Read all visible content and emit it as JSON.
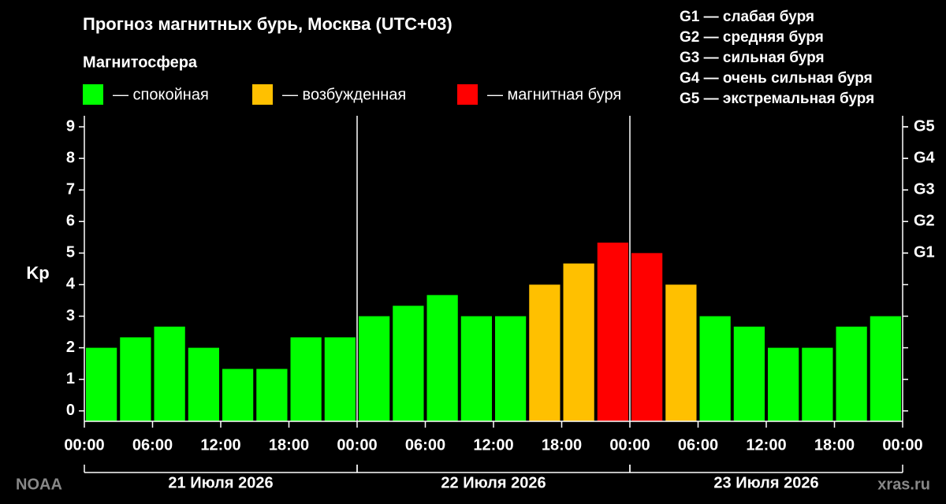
{
  "chart_data": {
    "type": "bar",
    "title": "Прогноз магнитных бурь, Москва (UTC+03)",
    "legend_title": "Магнитосфера",
    "y_label": "Kp",
    "source": "NOAA",
    "credit": "xras.ru",
    "g_legend": [
      "G1 — слабая буря",
      "G2 — средняя буря",
      "G3 — сильная буря",
      "G4 — очень сильная буря",
      "G5 — экстремальная буря"
    ],
    "x": [
      1.5,
      4.5,
      7.5,
      10.5,
      13.5,
      16.5,
      19.5,
      22.5,
      25.5,
      28.5,
      31.5,
      34.5,
      37.5,
      40.5,
      43.5,
      46.5,
      49.5,
      52.5,
      55.5,
      58.5,
      61.5,
      64.5,
      67.5,
      70.5
    ],
    "series": [
      {
        "name": "— спокойная",
        "color": "#00ff00",
        "values": [
          2,
          2.33,
          2.67,
          2,
          1.33,
          1.33,
          2.33,
          2.33,
          3,
          3.33,
          3.67,
          3,
          3,
          null,
          null,
          null,
          null,
          null,
          3,
          2.67,
          2,
          2,
          2.67,
          3
        ]
      },
      {
        "name": "— возбужденная",
        "color": "#ffc000",
        "values": [
          null,
          null,
          null,
          null,
          null,
          null,
          null,
          null,
          null,
          null,
          null,
          null,
          null,
          4,
          4.67,
          null,
          null,
          4,
          null,
          null,
          null,
          null,
          null,
          null
        ]
      },
      {
        "name": "— магнитная буря",
        "color": "#ff0000",
        "values": [
          null,
          null,
          null,
          null,
          null,
          null,
          null,
          null,
          null,
          null,
          null,
          null,
          null,
          null,
          null,
          5.33,
          5,
          null,
          null,
          null,
          null,
          null,
          null,
          null
        ]
      }
    ],
    "xlim": [
      0,
      72
    ],
    "xticks": [
      {
        "value": 0,
        "label": "00:00"
      },
      {
        "value": 6,
        "label": "06:00"
      },
      {
        "value": 12,
        "label": "12:00"
      },
      {
        "value": 18,
        "label": "18:00"
      },
      {
        "value": 24,
        "label": "00:00"
      },
      {
        "value": 30,
        "label": "06:00"
      },
      {
        "value": 36,
        "label": "12:00"
      },
      {
        "value": 42,
        "label": "18:00"
      },
      {
        "value": 48,
        "label": "00:00"
      },
      {
        "value": 54,
        "label": "06:00"
      },
      {
        "value": 60,
        "label": "12:00"
      },
      {
        "value": 66,
        "label": "18:00"
      },
      {
        "value": 72,
        "label": "00:00"
      }
    ],
    "ylim": [
      -0.33,
      9.35
    ],
    "yticks": [
      0,
      1,
      2,
      3,
      4,
      5,
      6,
      7,
      8,
      9
    ],
    "y2lim": [
      -0.33,
      9.35
    ],
    "y2ticks": [
      {
        "value": 5,
        "label": "G1"
      },
      {
        "value": 6,
        "label": "G2"
      },
      {
        "value": 7,
        "label": "G3"
      },
      {
        "value": 8,
        "label": "G4"
      },
      {
        "value": 9,
        "label": "G5"
      }
    ],
    "days": [
      {
        "label": "21 Июля 2026",
        "start": 0,
        "end": 24
      },
      {
        "label": "22 Июля 2026",
        "start": 24,
        "end": 48
      },
      {
        "label": "23 Июля 2026",
        "start": 48,
        "end": 72
      }
    ]
  }
}
